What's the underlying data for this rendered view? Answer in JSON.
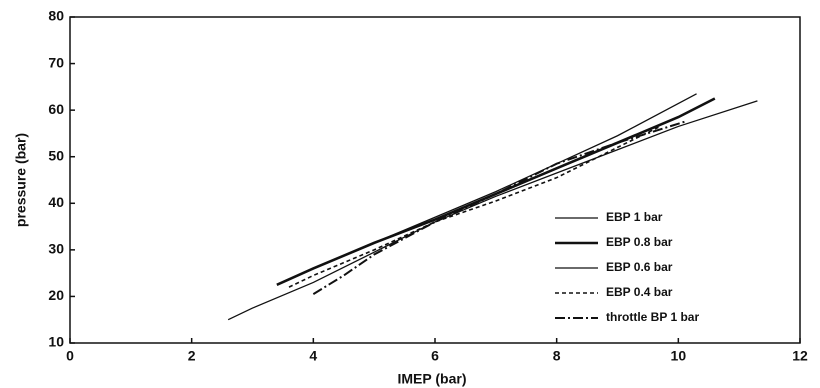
{
  "chart_data": {
    "type": "line",
    "x_label": "IMEP (bar)",
    "y_label": "pressure (bar)",
    "xlim": [
      0,
      12
    ],
    "xticks": [
      0,
      2,
      4,
      6,
      8,
      10,
      12
    ],
    "ylim": [
      10,
      80
    ],
    "yticks": [
      10,
      20,
      30,
      40,
      50,
      60,
      70,
      80
    ],
    "legend": "lower right",
    "series": [
      {
        "name": "EBP 1 bar",
        "color": "#111",
        "width": 1.3,
        "dash": "none",
        "x": [
          3.5,
          4,
          5,
          6,
          7,
          8,
          9,
          10.3
        ],
        "values": [
          23,
          26,
          31.5,
          37,
          42.5,
          48.5,
          54.5,
          63.5
        ]
      },
      {
        "name": "EBP 0.8 bar",
        "color": "#111",
        "width": 2.6,
        "dash": "none",
        "x": [
          3.4,
          4,
          5,
          6,
          7,
          8,
          9,
          10,
          10.6
        ],
        "values": [
          22.5,
          26,
          31.5,
          36.5,
          42,
          47.5,
          53,
          58.5,
          62.5
        ]
      },
      {
        "name": "EBP 0.6 bar",
        "color": "#111",
        "width": 1.3,
        "dash": "none",
        "x": [
          2.6,
          3,
          4,
          5,
          6,
          7,
          8,
          9,
          10,
          11.3
        ],
        "values": [
          15,
          17.5,
          23,
          29.5,
          36,
          41.5,
          46.5,
          51.5,
          56.5,
          62
        ]
      },
      {
        "name": "EBP 0.4 bar",
        "color": "#111",
        "width": 1.6,
        "dash": "4 3",
        "x": [
          3.6,
          4,
          5,
          6,
          7,
          8,
          9,
          9.7
        ],
        "values": [
          22,
          24.5,
          30,
          36,
          40.5,
          45.5,
          52,
          56.5
        ]
      },
      {
        "name": "throttle BP 1 bar",
        "color": "#111",
        "width": 2,
        "dash": "10 3 2 3",
        "x": [
          4,
          4.5,
          5,
          6,
          7,
          8,
          9,
          10.1
        ],
        "values": [
          20.5,
          24.5,
          29,
          36,
          42,
          48.5,
          53,
          57.5
        ]
      }
    ]
  }
}
